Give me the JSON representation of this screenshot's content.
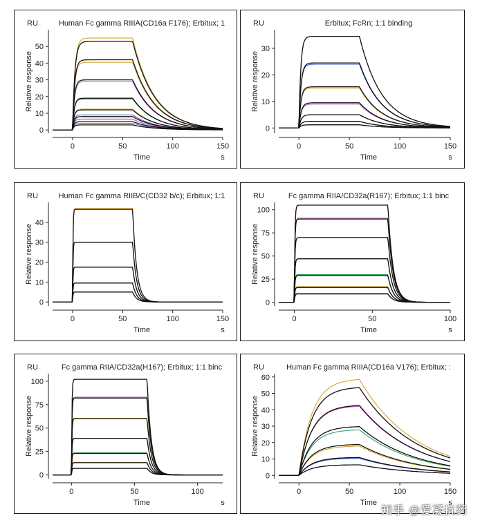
{
  "watermark": "知乎 @爱凝抗药",
  "chart_data": [
    {
      "type": "line",
      "title": "Human Fc gamma RIIIA(CD16a F176); Erbitux; 1",
      "ylabel": "Relative response",
      "xlabel": "Time",
      "yunit": "RU",
      "xunit": "s",
      "xlim": [
        -20,
        150
      ],
      "ylim": [
        -2,
        60
      ],
      "xticks": [
        0,
        50,
        100,
        150
      ],
      "yticks": [
        0,
        10,
        20,
        30,
        40,
        50
      ],
      "grid": false,
      "curve_model": "kinetic",
      "assoc_end": 60,
      "fitted_plateaus": [
        53,
        42,
        30,
        19,
        12,
        8,
        5,
        3
      ],
      "measured_plateaus": [
        55,
        40.5,
        29,
        18.5,
        12.5,
        9,
        6.5,
        4
      ],
      "kon": [
        0.4,
        0.45,
        0.5,
        0.55,
        0.6,
        0.6,
        0.6,
        0.6
      ],
      "koff": 0.045,
      "measured_colors": [
        "#d9a62e",
        "#d9a62e",
        "#c060c0",
        "#2e9e60",
        "#d9a62e",
        "#4060d0",
        "#d040a0",
        "#5080c0"
      ]
    },
    {
      "type": "line",
      "title": "Erbitux; FcRn; 1:1 binding",
      "ylabel": "Relative response",
      "xlabel": "Time",
      "yunit": "RU",
      "xunit": "s",
      "xlim": [
        -20,
        150
      ],
      "ylim": [
        -2,
        37
      ],
      "xticks": [
        0,
        50,
        100,
        150
      ],
      "yticks": [
        0,
        10,
        20,
        30
      ],
      "grid": false,
      "curve_model": "kinetic",
      "assoc_end": 60,
      "fitted_plateaus": [
        34.5,
        24.5,
        15.5,
        9.5,
        5,
        2.5,
        1.2
      ],
      "measured_plateaus": [
        34.5,
        24,
        15,
        9,
        5,
        2.5,
        1.2
      ],
      "kon": [
        0.5,
        0.45,
        0.45,
        0.4,
        0.4,
        0.4,
        0.4
      ],
      "koff": 0.045,
      "measured_colors": [
        "#d9c82e",
        "#4060d0",
        "#d9a62e",
        "#c060c0",
        "#2e9e60",
        "#d040a0",
        "#30a0c0"
      ]
    },
    {
      "type": "line",
      "title": "Human Fc gamma RIIB/C(CD32 b/c); Erbitux; 1:1",
      "ylabel": "Relative response",
      "xlabel": "Time",
      "yunit": "RU",
      "xunit": "s",
      "xlim": [
        -20,
        150
      ],
      "ylim": [
        -2,
        50
      ],
      "xticks": [
        0,
        50,
        100,
        150
      ],
      "yticks": [
        0,
        10,
        20,
        30,
        40
      ],
      "grid": false,
      "curve_model": "kinetic",
      "assoc_end": 60,
      "fitted_plateaus": [
        46.5,
        30,
        17.5,
        9.5,
        5
      ],
      "measured_plateaus": [
        47,
        30,
        17.5,
        9.5,
        5
      ],
      "kon": [
        2.5,
        2.5,
        2.5,
        2.5,
        2.5
      ],
      "koff": 0.25,
      "measured_colors": [
        "#d9a62e",
        "#c060c0",
        "#2e9e60",
        "#4060d0",
        "#d040a0"
      ]
    },
    {
      "type": "line",
      "title": "Fc gamma RIIA/CD32a(R167); Erbitux; 1:1 binc",
      "ylabel": "Relative response",
      "xlabel": "Time",
      "yunit": "RU",
      "xunit": "s",
      "xlim": [
        -10,
        100
      ],
      "ylim": [
        -4,
        108
      ],
      "xticks": [
        0,
        50,
        100
      ],
      "yticks": [
        0,
        25,
        50,
        75,
        100
      ],
      "grid": false,
      "curve_model": "kinetic",
      "assoc_end": 60,
      "fitted_plateaus": [
        105,
        90,
        70,
        47,
        29,
        16,
        9
      ],
      "measured_plateaus": [
        105,
        91,
        70,
        47,
        30,
        17,
        9.5
      ],
      "kon": [
        2.5,
        2.5,
        2.5,
        2.5,
        2.5,
        2.5,
        2.5
      ],
      "koff": 0.3,
      "measured_colors": [
        "#d9a62e",
        "#c060c0",
        "#d9a62e",
        "#d040a0",
        "#2e9e60",
        "#d9a62e",
        "#4060d0"
      ]
    },
    {
      "type": "line",
      "title": "Fc gamma RIIA/CD32a(H167); Erbitux; 1:1 binc",
      "ylabel": "Relative response",
      "xlabel": "Time",
      "yunit": "RU",
      "xunit": "s",
      "xlim": [
        -15,
        120
      ],
      "ylim": [
        -4,
        108
      ],
      "xticks": [
        0,
        50,
        100
      ],
      "yticks": [
        0,
        25,
        50,
        75,
        100
      ],
      "grid": false,
      "curve_model": "kinetic",
      "assoc_end": 60,
      "fitted_plateaus": [
        102,
        82,
        60,
        39,
        23,
        13,
        7
      ],
      "measured_plateaus": [
        102,
        83,
        60.5,
        39,
        23.5,
        13.5,
        7
      ],
      "kon": [
        2.5,
        2.5,
        2.5,
        2.5,
        2.5,
        2.5,
        2.5
      ],
      "koff": 0.3,
      "measured_colors": [
        "#d9a62e",
        "#c060c0",
        "#d9a62e",
        "#d040a0",
        "#2e9e60",
        "#d9a62e",
        "#4060d0"
      ]
    },
    {
      "type": "line",
      "title": "Human Fc gamma RIIIA(CD16a V176); Erbitux; :",
      "ylabel": "Relative response",
      "xlabel": "Time",
      "yunit": "RU",
      "xunit": "s",
      "xlim": [
        -20,
        150
      ],
      "ylim": [
        -2,
        62
      ],
      "xticks": [
        0,
        50,
        100,
        150
      ],
      "yticks": [
        0,
        10,
        20,
        30,
        40,
        50,
        60
      ],
      "grid": false,
      "curve_model": "kinetic",
      "assoc_end": 60,
      "fitted_plateaus": [
        54,
        43,
        30,
        19,
        11,
        6.5
      ],
      "measured_plateaus": [
        59,
        42.5,
        28,
        18,
        10.5,
        6.5
      ],
      "kon": [
        0.06,
        0.06,
        0.06,
        0.06,
        0.06,
        0.06
      ],
      "koff": 0.018,
      "measured_colors": [
        "#d9a62e",
        "#c060c0",
        "#2e9e60",
        "#d9a62e",
        "#4060d0",
        "#d040a0"
      ]
    }
  ]
}
